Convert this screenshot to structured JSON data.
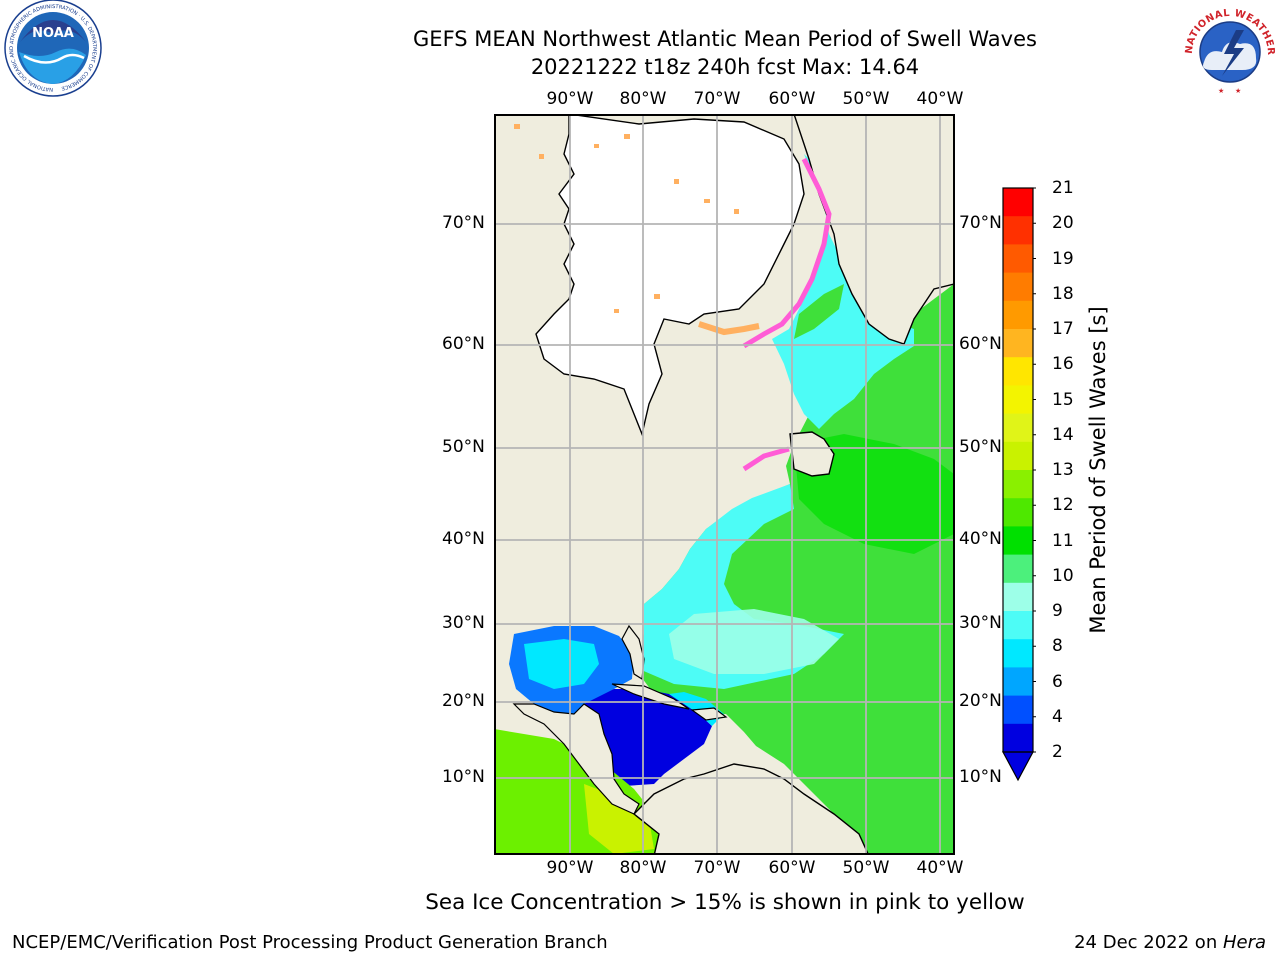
{
  "header": {
    "title_line1": "GEFS MEAN Northwest Atlantic Mean Period of Swell Waves",
    "title_line2": "20221222 t18z 240h fcst   Max: 14.64"
  },
  "logos": {
    "left": "NOAA",
    "left_ring": "NATIONAL OCEANIC AND ATMOSPHERIC ADMINISTRATION · U.S. DEPARTMENT OF COMMERCE",
    "right_ring": "NATIONAL WEATHER SERVICE"
  },
  "map": {
    "lon_labels": [
      "90°W",
      "80°W",
      "70°W",
      "60°W",
      "50°W",
      "40°W"
    ],
    "lat_labels": [
      "70°N",
      "60°N",
      "50°N",
      "40°N",
      "30°N",
      "20°N",
      "10°N"
    ],
    "colors": {
      "land": "#efedde",
      "ice_land": "#ffffff",
      "grid": "#b5b5b5"
    }
  },
  "colorbar": {
    "label": "Mean Period of Swell Waves [s]",
    "ticks": [
      "21",
      "20",
      "19",
      "18",
      "17",
      "16",
      "15",
      "14",
      "13",
      "12",
      "11",
      "10",
      "9",
      "8",
      "6",
      "4",
      "2"
    ],
    "colors": [
      "#ff0000",
      "#ff3000",
      "#ff5a00",
      "#ff7c00",
      "#ff9a00",
      "#ffb520",
      "#ffe600",
      "#f3f400",
      "#e0f418",
      "#c9f200",
      "#8af000",
      "#4ee800",
      "#00e000",
      "#4cf07c",
      "#9dffe8",
      "#4dfcf6",
      "#00e8ff",
      "#00a6ff",
      "#0050ff",
      "#0000e0"
    ]
  },
  "note": "Sea Ice Concentration > 15% is shown in pink to yellow",
  "footer": {
    "left": "NCEP/EMC/Verification Post Processing Product Generation Branch",
    "right_prefix": "24 Dec 2022 on ",
    "right_host": "Hera"
  }
}
